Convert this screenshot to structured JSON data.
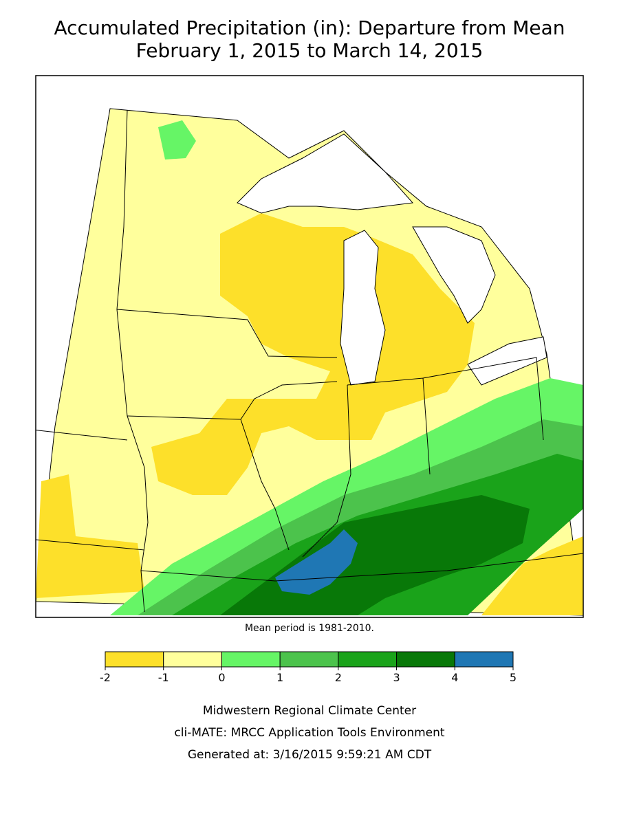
{
  "header": {
    "title": "Accumulated Precipitation (in): Departure from Mean",
    "subtitle": "February 1, 2015 to March 14, 2015"
  },
  "map": {
    "note": "Mean period is 1981-2010."
  },
  "legend": {
    "ticks": [
      -2,
      -1,
      0,
      1,
      2,
      3,
      4,
      5
    ],
    "colors": [
      "#fde02a",
      "#ffff9c",
      "#66f566",
      "#4cc34c",
      "#1aa31a",
      "#087808",
      "#1f77b4"
    ]
  },
  "footer": {
    "lines": [
      "Midwestern Regional Climate Center",
      "cli-MATE: MRCC Application Tools Environment",
      "Generated at: 3/16/2015 9:59:21 AM CDT"
    ]
  }
}
